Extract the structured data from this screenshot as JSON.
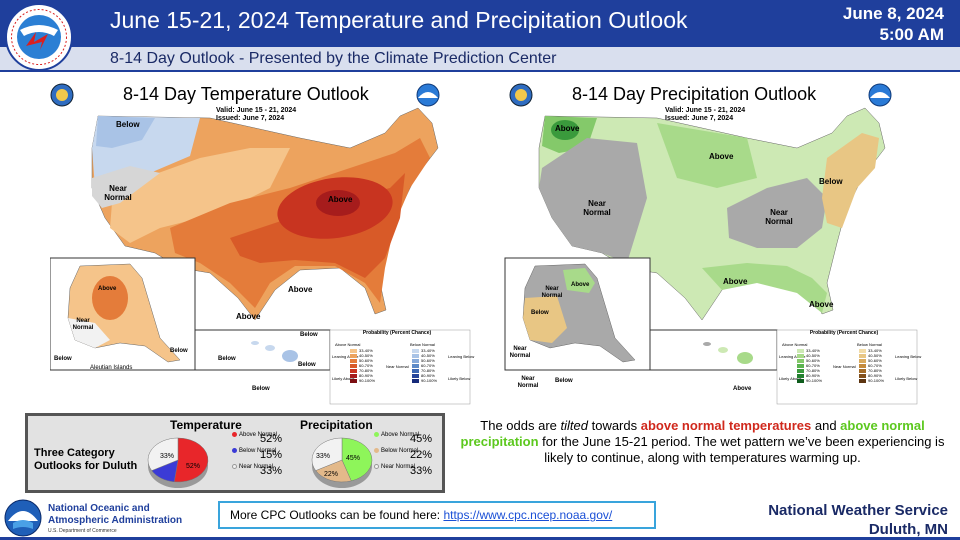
{
  "header": {
    "title": "June 15-21, 2024 Temperature and Precipitation Outlook",
    "date": "June 8, 2024",
    "time": "5:00 AM",
    "subtitle": "8-14 Day Outlook - Presented by the Climate Prediction Center"
  },
  "temperature_map": {
    "title": "8-14 Day Temperature Outlook",
    "valid": "Valid:  June 15 - 21, 2024",
    "issued": "Issued:  June 7, 2024",
    "labels": {
      "below_nw": "Below",
      "near_normal": "Near Normal",
      "above_mw": "Above",
      "above_south": "Above",
      "above_tx": "Above",
      "ak_above": "Above",
      "ak_near": "Near Normal",
      "ak_below": "Below",
      "ak_below2": "Below",
      "aleutian": "Aleutian Islands",
      "hi_below1": "Below",
      "hi_below2": "Below",
      "hi_below3": "Below",
      "hi_below4": "Below"
    },
    "legend": {
      "title": "Probability (Percent Chance)",
      "above_normal": "Above Normal",
      "below_normal": "Below Normal",
      "leaning_above": "Leaning Above",
      "likely_above": "Likely Above",
      "near_normal": "Near Normal",
      "leaning_below": "Leaning Below",
      "likely_below": "Likely Below",
      "ranges": [
        "33-40%",
        "40-50%",
        "50-60%",
        "60-70%",
        "70-80%",
        "80-90%",
        "90-100%"
      ],
      "above_colors": [
        "#f5c48a",
        "#eda35e",
        "#e47c3a",
        "#d85a28",
        "#c83420",
        "#a61c1c",
        "#7c0e12"
      ],
      "below_colors": [
        "#c7d8ee",
        "#a9c3e6",
        "#86a9d9",
        "#5d8ac7",
        "#3b66b2",
        "#26459a",
        "#162a7a"
      ]
    }
  },
  "precipitation_map": {
    "title": "8-14 Day Precipitation Outlook",
    "valid": "Valid:  June 15 - 21, 2024",
    "issued": "Issued:  June 7, 2024",
    "labels": {
      "above_nw": "Above",
      "above_n": "Above",
      "near_normal_w": "Near Normal",
      "near_normal_e": "Near Normal",
      "below_ne": "Below",
      "above_gulf": "Above",
      "above_fl": "Above",
      "ak_below": "Below",
      "ak_near": "Near Normal",
      "ak_above": "Above",
      "ak_near2": "Near Normal",
      "ak_below2": "Below",
      "ak_near3": "Near Normal",
      "hi_above": "Above"
    },
    "legend": {
      "title": "Probability (Percent Chance)",
      "above_normal": "Above Normal",
      "below_normal": "Below Normal",
      "leaning_above": "Leaning Above",
      "likely_above": "Likely Above",
      "near_normal": "Near Normal",
      "leaning_below": "Leaning Below",
      "likely_below": "Likely Below",
      "ranges": [
        "33-40%",
        "40-50%",
        "50-60%",
        "60-70%",
        "70-80%",
        "80-90%",
        "90-100%"
      ],
      "above_colors": [
        "#cde9b4",
        "#a8da8a",
        "#84c96a",
        "#5bb34f",
        "#3a9a3c",
        "#22802e",
        "#0e5c1c"
      ],
      "below_colors": [
        "#f2dca8",
        "#e8c684",
        "#d9aa5e",
        "#c48a3c",
        "#a46c28",
        "#82501c",
        "#5c3410"
      ]
    }
  },
  "duluth": {
    "label": "Three Category Outlooks for Duluth",
    "temperature": {
      "heading": "Temperature",
      "categories": [
        {
          "name": "Above Normal",
          "value": 52,
          "color": "#e8262a"
        },
        {
          "name": "Below Normal",
          "value": 15,
          "color": "#3b3bd6"
        },
        {
          "name": "Near Normal",
          "value": 33,
          "color": "#f2f2f2"
        }
      ],
      "slice_labels": [
        "33%",
        "52%"
      ]
    },
    "precipitation": {
      "heading": "Precipitation",
      "categories": [
        {
          "name": "Above Normal",
          "value": 45,
          "color": "#8ef55a"
        },
        {
          "name": "Below Normal",
          "value": 22,
          "color": "#e3b98a"
        },
        {
          "name": "Near Normal",
          "value": 33,
          "color": "#f2f2f2"
        }
      ],
      "slice_labels": [
        "33%",
        "45%",
        "22%"
      ]
    },
    "percent_labels": {
      "temp": [
        "52%",
        "15%",
        "33%"
      ],
      "precip": [
        "45%",
        "22%",
        "33%"
      ]
    }
  },
  "message": {
    "p1": "The odds are ",
    "tilted": "tilted",
    "p2": " towards ",
    "above_temps": "above normal temperatures",
    "and": " and ",
    "above_precip": "above normal precipitation",
    "p3": " for the June 15-21 period. The wet pattern we’ve been experiencing is likely to continue, along with temperatures warming up."
  },
  "footer": {
    "noaa_line1": "National Oceanic and",
    "noaa_line2": "Atmospheric Administration",
    "noaa_dept": "U.S. Department of Commerce",
    "link_prefix": "More CPC Outlooks can be found here: ",
    "link_url": "https://www.cpc.ncep.noaa.gov/",
    "office_name": "National Weather Service",
    "office_city": "Duluth, MN",
    "nws_logo_text": "NATIONAL WEATHER SERVICE"
  }
}
